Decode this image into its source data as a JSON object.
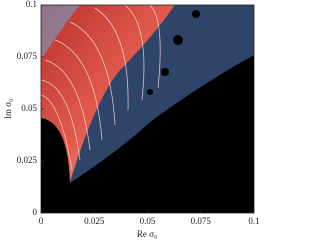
{
  "chart_data": {
    "type": "heatmap",
    "xlabel": "Re σ₀",
    "ylabel": "Im σ₀",
    "xlim": [
      0,
      0.1
    ],
    "ylim": [
      0,
      0.1
    ],
    "xticks": [
      0,
      0.025,
      0.05,
      0.075,
      0.1
    ],
    "yticks": [
      0,
      0.025,
      0.05,
      0.075,
      0.1
    ]
  }
}
